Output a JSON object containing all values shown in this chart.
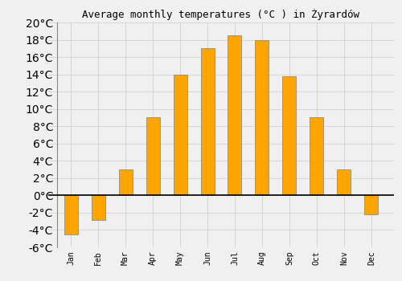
{
  "title": "Average monthly temperatures (°C ) in Żyrardów",
  "months": [
    "Jan",
    "Feb",
    "Mar",
    "Apr",
    "May",
    "Jun",
    "Jul",
    "Aug",
    "Sep",
    "Oct",
    "Nov",
    "Dec"
  ],
  "values": [
    -4.5,
    -2.8,
    3.0,
    9.0,
    14.0,
    17.0,
    18.5,
    18.0,
    13.8,
    9.0,
    3.0,
    -2.2
  ],
  "bar_color": "#FFA500",
  "bar_edge_color": "#808080",
  "background_color": "#f0f0f0",
  "grid_color": "#cccccc",
  "ylim": [
    -6,
    20
  ],
  "yticks": [
    -6,
    -4,
    -2,
    0,
    2,
    4,
    6,
    8,
    10,
    12,
    14,
    16,
    18,
    20
  ],
  "ytick_labels": [
    "-6°C",
    "-4°C",
    "-2°C",
    "0°C",
    "2°C",
    "4°C",
    "6°C",
    "8°C",
    "10°C",
    "12°C",
    "14°C",
    "16°C",
    "18°C",
    "20°C"
  ],
  "title_fontsize": 9,
  "tick_fontsize": 7,
  "font_family": "monospace",
  "bar_width": 0.5
}
